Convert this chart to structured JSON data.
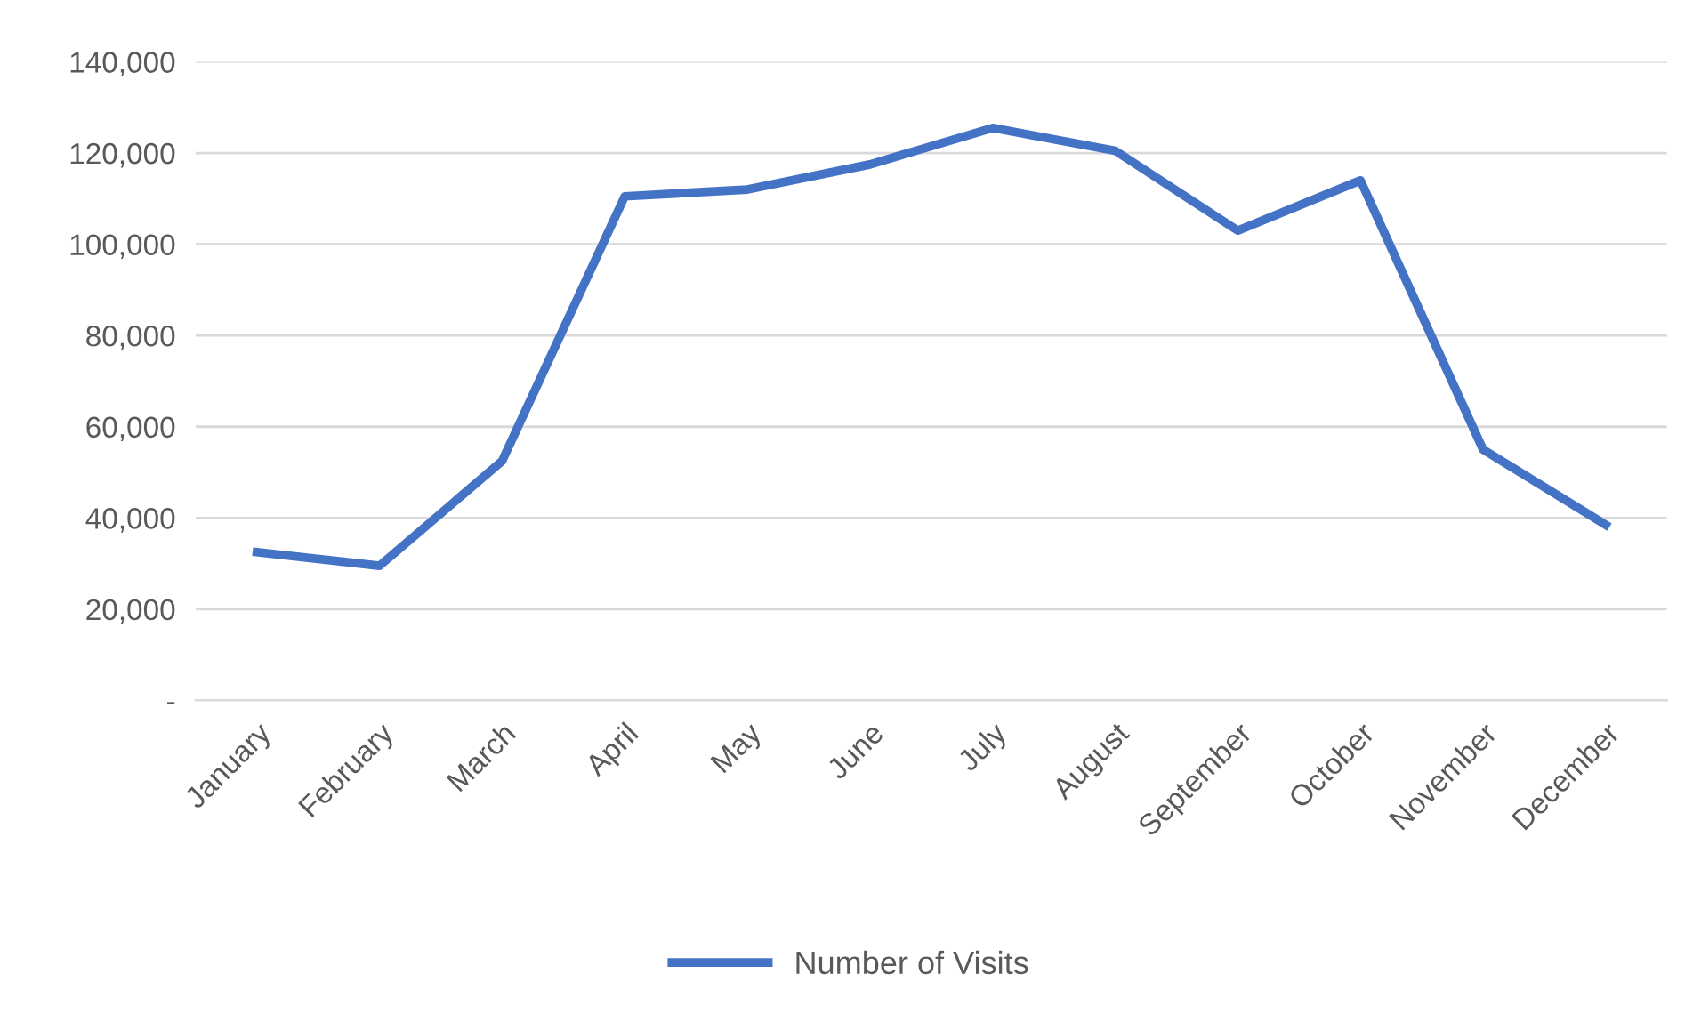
{
  "chart_data": {
    "type": "line",
    "categories": [
      "January",
      "February",
      "March",
      "April",
      "May",
      "June",
      "July",
      "August",
      "September",
      "October",
      "November",
      "December"
    ],
    "series": [
      {
        "name": "Number of Visits",
        "color": "#4472c4",
        "values": [
          32500,
          29500,
          52500,
          110500,
          112000,
          117500,
          125500,
          120500,
          103000,
          114000,
          55000,
          38500
        ]
      }
    ],
    "ylim": [
      0,
      140000
    ],
    "yticks": [
      {
        "value": 0,
        "label": "-"
      },
      {
        "value": 20000,
        "label": "20,000"
      },
      {
        "value": 40000,
        "label": "40,000"
      },
      {
        "value": 60000,
        "label": "60,000"
      },
      {
        "value": 80000,
        "label": "80,000"
      },
      {
        "value": 100000,
        "label": "100,000"
      },
      {
        "value": 120000,
        "label": "120,000"
      },
      {
        "value": 140000,
        "label": "140,000"
      }
    ],
    "grid": "y",
    "legend": "bottom",
    "marker": "none",
    "line_style": "solid"
  }
}
